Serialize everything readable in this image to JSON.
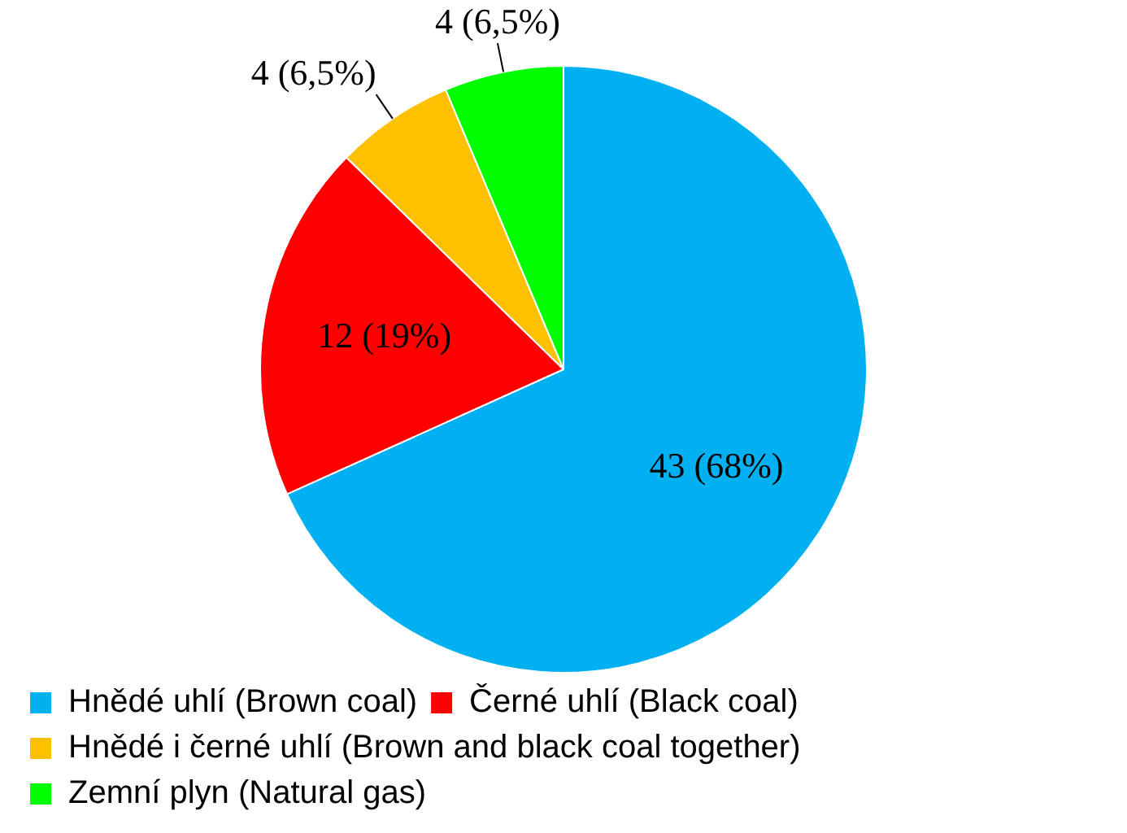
{
  "chart_data": {
    "type": "pie",
    "categories": [
      "Hnědé uhlí (Brown coal)",
      "Černé uhlí (Black coal)",
      "Hnědé i černé uhlí (Brown and black coal together)",
      "Zemní plyn (Natural gas)"
    ],
    "values": [
      43,
      12,
      4,
      4
    ],
    "colors": [
      "#00b0f0",
      "#ff0000",
      "#ffc000",
      "#00ff00"
    ],
    "value_labels": [
      "43 (68%)",
      "12 (19%)",
      "4 (6,5%)",
      "4 (6,5%)"
    ],
    "legend": "bottom left"
  }
}
